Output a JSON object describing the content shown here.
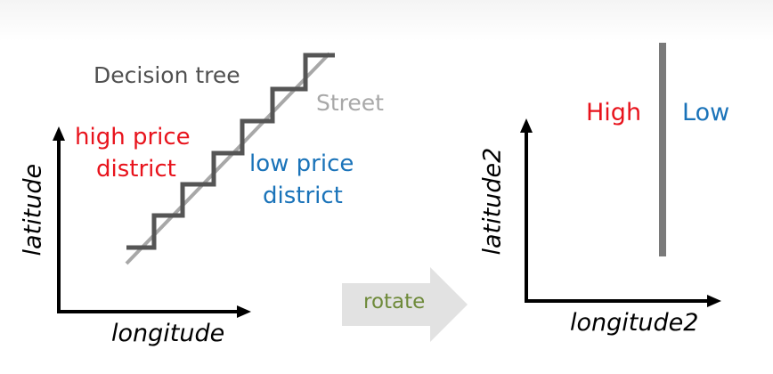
{
  "left_panel": {
    "ylabel": "latitude",
    "xlabel": "longitude",
    "title": "Decision tree",
    "street_label": "Street",
    "high_label_line1": "high price",
    "high_label_line2": "district",
    "low_label_line1": "low price",
    "low_label_line2": "district"
  },
  "arrow": {
    "label": "rotate"
  },
  "right_panel": {
    "ylabel": "latitude2",
    "xlabel": "longitude2",
    "high_label": "High",
    "low_label": "Low"
  },
  "colors": {
    "high": "#e8131c",
    "low": "#1a73b9",
    "tree_line": "#555555",
    "street_line": "#a8a8a8",
    "axis": "#000000",
    "rotate_text": "#6e8a3a",
    "rotate_arrow": "#e2e2e2",
    "boundary": "#7a7a7a"
  }
}
